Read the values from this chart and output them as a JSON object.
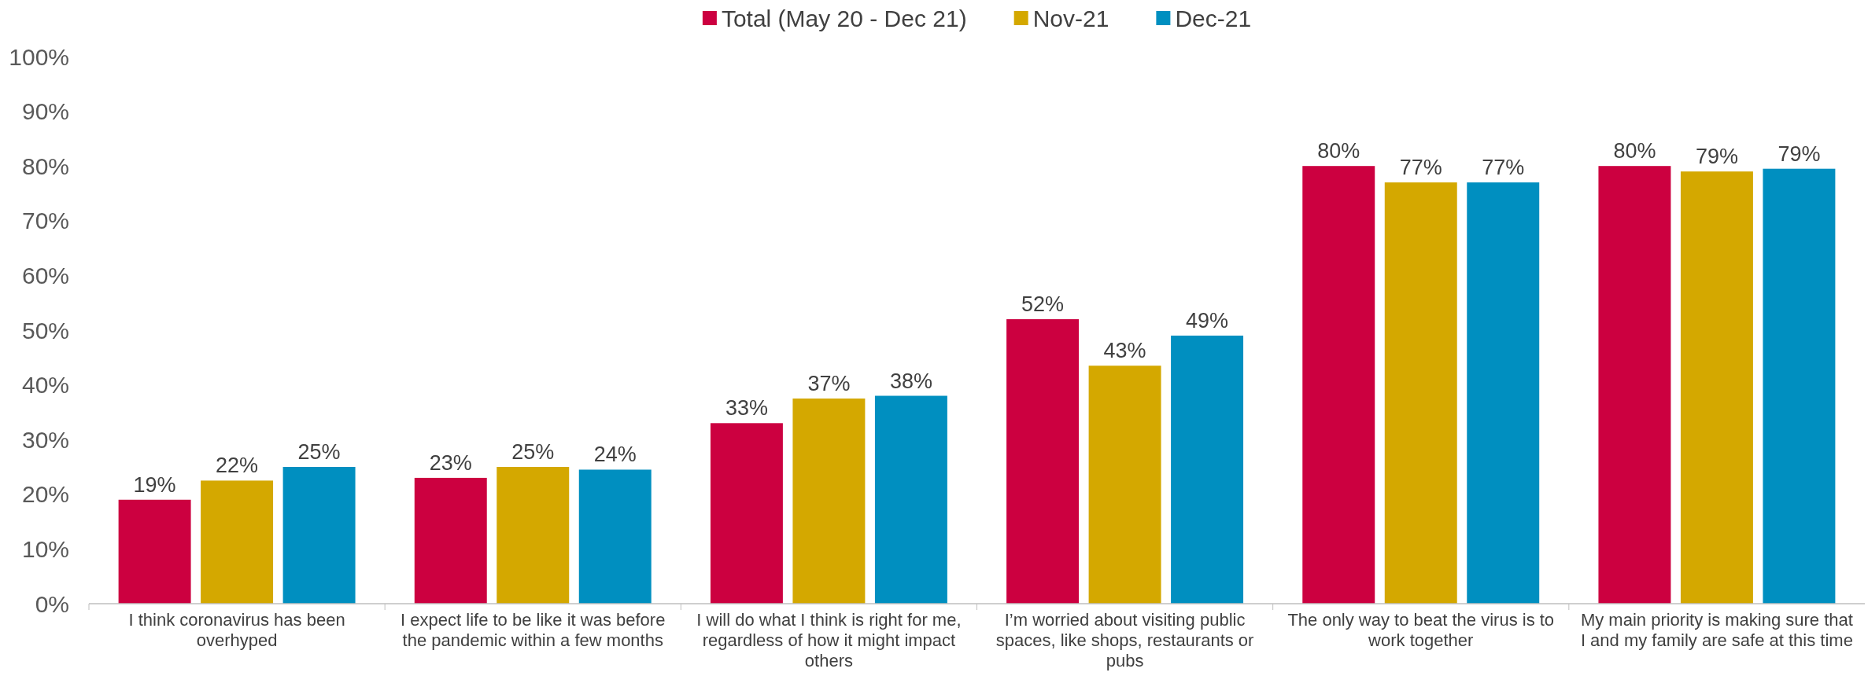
{
  "chart_data": {
    "type": "bar",
    "categories": [
      "I think coronavirus has been overhyped",
      "I expect life to be like it was before the pandemic within a few months",
      "I will do what I think is right for me, regardless of how it might impact others",
      "I’m worried about visiting public spaces, like shops, restaurants or pubs",
      "The only way to beat the virus is to work together",
      "My main priority is making sure that I and my family are safe at this time"
    ],
    "series": [
      {
        "name": "Total (May 20 - Dec 21)",
        "color": "#cc0040",
        "values": [
          19,
          23,
          33,
          52,
          80,
          80
        ],
        "value_labels": [
          "19%",
          "23%",
          "33%",
          "52%",
          "80%",
          "80%"
        ]
      },
      {
        "name": "Nov-21",
        "color": "#d4a800",
        "values": [
          22.5,
          25,
          37.5,
          43.5,
          77,
          79
        ],
        "value_labels": [
          "22%",
          "25%",
          "37%",
          "43%",
          "77%",
          "79%"
        ]
      },
      {
        "name": "Dec-21",
        "color": "#008fc0",
        "values": [
          25,
          24.5,
          38,
          49,
          77,
          79.5
        ],
        "value_labels": [
          "25%",
          "24%",
          "38%",
          "49%",
          "77%",
          "79%"
        ]
      }
    ],
    "ylim": [
      0,
      100
    ],
    "yticks": [
      {
        "value": 0,
        "label": "0%"
      },
      {
        "value": 10,
        "label": "10%"
      },
      {
        "value": 20,
        "label": "20%"
      },
      {
        "value": 30,
        "label": "30%"
      },
      {
        "value": 40,
        "label": "40%"
      },
      {
        "value": 50,
        "label": "50%"
      },
      {
        "value": 60,
        "label": "60%"
      },
      {
        "value": 70,
        "label": "70%"
      },
      {
        "value": 80,
        "label": "80%"
      },
      {
        "value": 90,
        "label": "90%"
      },
      {
        "value": 100,
        "label": "100%"
      }
    ],
    "grid": false,
    "legend": "top"
  }
}
